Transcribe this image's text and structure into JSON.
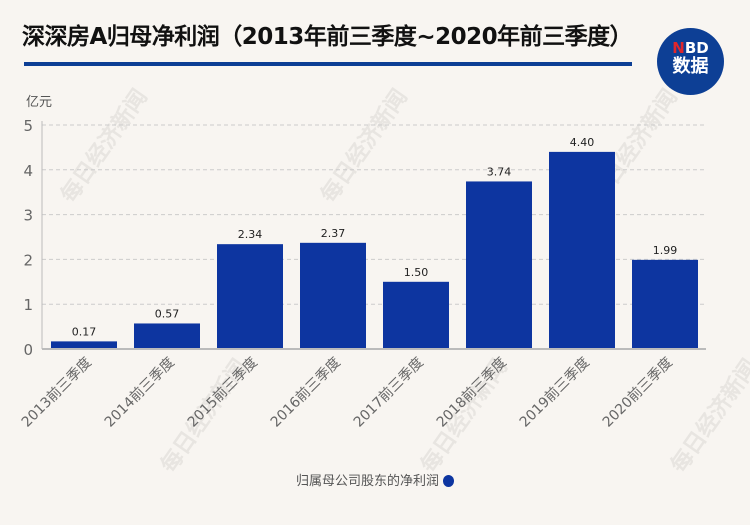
{
  "chart_data": {
    "type": "bar",
    "title": "深深房A归母净利润（2013年前三季度~2020年前三季度）",
    "ylabel": "亿元",
    "ylim": [
      0,
      5
    ],
    "yticks": [
      0,
      1,
      2,
      3,
      4,
      5
    ],
    "grid": true,
    "legend_position": "bottom",
    "categories": [
      "2013前三季度",
      "2014前三季度",
      "2015前三季度",
      "2016前三季度",
      "2017前三季度",
      "2018前三季度",
      "2019前三季度",
      "2020前三季度"
    ],
    "series": [
      {
        "name": "归属母公司股东的净利润",
        "values": [
          0.17,
          0.57,
          2.34,
          2.37,
          1.5,
          3.74,
          4.4,
          1.99
        ],
        "labels": [
          "0.17",
          "0.57",
          "2.34",
          "2.37",
          "1.50",
          "3.74",
          "4.40",
          "1.99"
        ],
        "color": "#0d35a0"
      }
    ]
  },
  "logo": {
    "top": "NBD",
    "bottom": "数据"
  },
  "watermark": "每日经济新闻",
  "colors": {
    "accent": "#0d3f95",
    "bar": "#0d35a0"
  }
}
